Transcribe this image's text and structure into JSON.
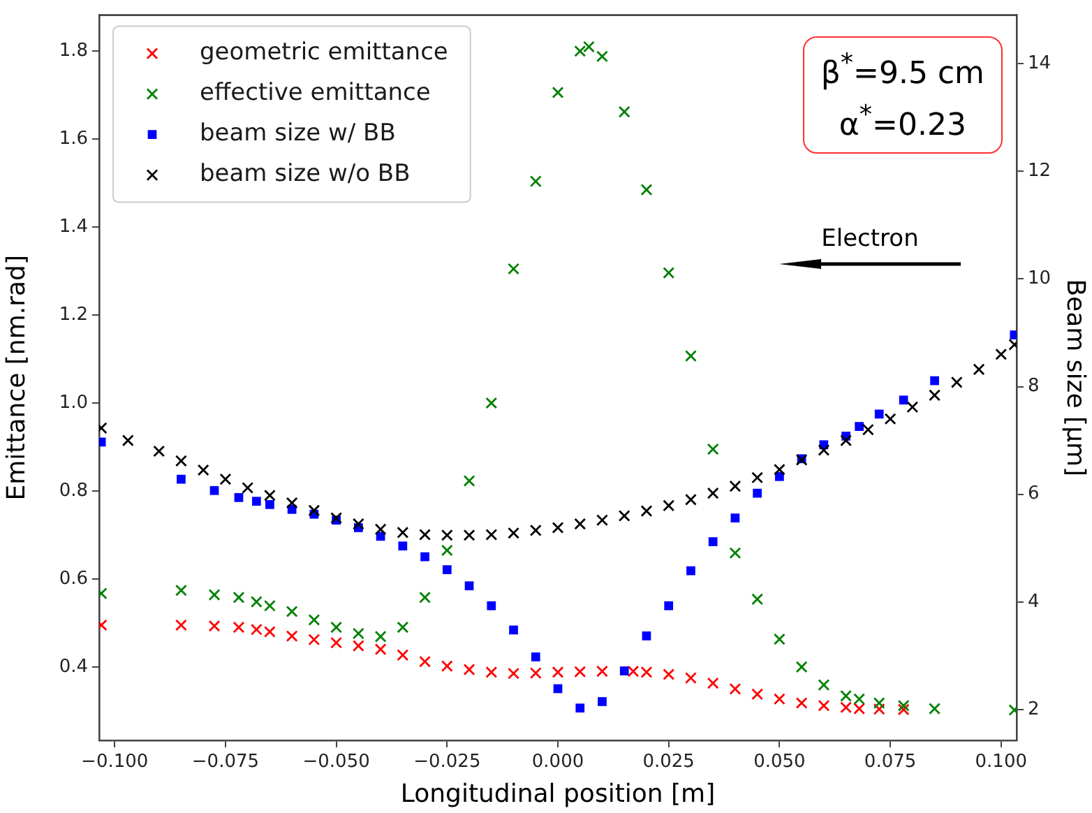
{
  "chart_data": {
    "type": "scatter",
    "xlabel": "Longitudinal position [m]",
    "ylabel": "Emittance [nm.rad]",
    "y2label": "Beam size [μm]",
    "xlim": [
      -0.1035,
      0.1035
    ],
    "xticks": [
      {
        "value": -0.1,
        "label": "−0.100"
      },
      {
        "value": -0.075,
        "label": "−0.075"
      },
      {
        "value": -0.05,
        "label": "−0.050"
      },
      {
        "value": -0.025,
        "label": "−0.025"
      },
      {
        "value": 0,
        "label": "0.000"
      },
      {
        "value": 0.025,
        "label": "0.025"
      },
      {
        "value": 0.05,
        "label": "0.050"
      },
      {
        "value": 0.075,
        "label": "0.075"
      },
      {
        "value": 0.1,
        "label": "0.100"
      }
    ],
    "ylim": [
      0.233,
      1.882
    ],
    "yticks": [
      0.4,
      0.6,
      0.8,
      {
        "value": 1.0,
        "label": "1.0"
      },
      1.2,
      1.4,
      1.6,
      1.8
    ],
    "y2lim": [
      1.43,
      14.9
    ],
    "y2ticks": [
      2,
      4,
      6,
      8,
      10,
      12,
      14
    ],
    "grid": false,
    "legend": "top left",
    "annotations": [
      "β$^{*}$=9.5 cm\nα$^{*}$=0.23",
      "Electron"
    ],
    "series": [
      {
        "name": "geometric emittance",
        "color": "#ff0000",
        "marker": "cross",
        "x": [
          -0.103,
          -0.085,
          -0.0775,
          -0.072,
          -0.068,
          -0.065,
          -0.06,
          -0.055,
          -0.05,
          -0.045,
          -0.04,
          -0.035,
          -0.03,
          -0.025,
          -0.02,
          -0.015,
          -0.01,
          -0.005,
          0,
          0.005,
          0.01,
          0.017,
          0.02,
          0.025,
          0.03,
          0.035,
          0.04,
          0.045,
          0.05,
          0.055,
          0.06,
          0.065,
          0.068,
          0.0725,
          0.078
        ],
        "values": [
          0.495,
          0.495,
          0.493,
          0.49,
          0.485,
          0.48,
          0.47,
          0.462,
          0.455,
          0.448,
          0.44,
          0.427,
          0.412,
          0.402,
          0.394,
          0.388,
          0.385,
          0.386,
          0.388,
          0.389,
          0.39,
          0.39,
          0.388,
          0.383,
          0.375,
          0.363,
          0.35,
          0.338,
          0.327,
          0.318,
          0.312,
          0.308,
          0.305,
          0.304,
          0.303
        ]
      },
      {
        "name": "effective emittance",
        "color": "#008000",
        "marker": "cross",
        "x": [
          -0.103,
          -0.085,
          -0.0775,
          -0.072,
          -0.068,
          -0.065,
          -0.06,
          -0.055,
          -0.05,
          -0.045,
          -0.04,
          -0.035,
          -0.03,
          -0.025,
          -0.02,
          -0.015,
          -0.01,
          -0.005,
          0,
          0.005,
          0.007,
          0.01,
          0.015,
          0.02,
          0.025,
          0.03,
          0.035,
          0.04,
          0.045,
          0.05,
          0.055,
          0.06,
          0.065,
          0.068,
          0.0725,
          0.078,
          0.085,
          0.103
        ],
        "values": [
          0.567,
          0.574,
          0.564,
          0.558,
          0.548,
          0.539,
          0.526,
          0.507,
          0.49,
          0.476,
          0.469,
          0.49,
          0.558,
          0.665,
          0.823,
          1.0,
          1.305,
          1.504,
          1.706,
          1.8,
          1.81,
          1.788,
          1.662,
          1.485,
          1.296,
          1.107,
          0.895,
          0.659,
          0.554,
          0.463,
          0.4,
          0.359,
          0.334,
          0.327,
          0.318,
          0.312,
          0.305,
          0.302
        ]
      },
      {
        "name": "beam size w/ BB",
        "color": "#0000ff",
        "marker": "square",
        "axis": "y2",
        "x": [
          -0.103,
          -0.085,
          -0.0775,
          -0.072,
          -0.068,
          -0.065,
          -0.06,
          -0.055,
          -0.05,
          -0.045,
          -0.04,
          -0.035,
          -0.03,
          -0.025,
          -0.02,
          -0.015,
          -0.01,
          -0.005,
          0,
          0.005,
          0.01,
          0.015,
          0.02,
          0.025,
          0.03,
          0.035,
          0.04,
          0.045,
          0.05,
          0.055,
          0.06,
          0.065,
          0.068,
          0.0725,
          0.078,
          0.085,
          0.103
        ],
        "values": [
          6.97,
          6.28,
          6.07,
          5.94,
          5.87,
          5.81,
          5.72,
          5.63,
          5.52,
          5.38,
          5.22,
          5.04,
          4.84,
          4.6,
          4.3,
          3.93,
          3.48,
          2.98,
          2.39,
          2.03,
          2.15,
          2.72,
          3.37,
          3.93,
          4.58,
          5.12,
          5.56,
          6.02,
          6.33,
          6.66,
          6.92,
          7.08,
          7.26,
          7.49,
          7.75,
          8.11,
          8.96
        ]
      },
      {
        "name": "beam size w/o BB",
        "color": "#000000",
        "marker": "cross",
        "axis": "y2",
        "x": [
          -0.103,
          -0.097,
          -0.09,
          -0.085,
          -0.08,
          -0.075,
          -0.07,
          -0.065,
          -0.06,
          -0.055,
          -0.05,
          -0.045,
          -0.04,
          -0.035,
          -0.03,
          -0.025,
          -0.02,
          -0.015,
          -0.01,
          -0.005,
          0,
          0.005,
          0.01,
          0.015,
          0.02,
          0.025,
          0.03,
          0.035,
          0.04,
          0.045,
          0.05,
          0.055,
          0.06,
          0.065,
          0.07,
          0.075,
          0.08,
          0.085,
          0.09,
          0.095,
          0.1,
          0.103
        ],
        "values": [
          7.23,
          7.0,
          6.8,
          6.62,
          6.45,
          6.28,
          6.12,
          5.98,
          5.84,
          5.7,
          5.56,
          5.45,
          5.35,
          5.29,
          5.25,
          5.24,
          5.24,
          5.25,
          5.28,
          5.33,
          5.38,
          5.45,
          5.52,
          5.6,
          5.69,
          5.79,
          5.9,
          6.02,
          6.15,
          6.31,
          6.46,
          6.64,
          6.82,
          7.0,
          7.2,
          7.4,
          7.62,
          7.84,
          8.08,
          8.32,
          8.6,
          8.78
        ]
      }
    ]
  }
}
